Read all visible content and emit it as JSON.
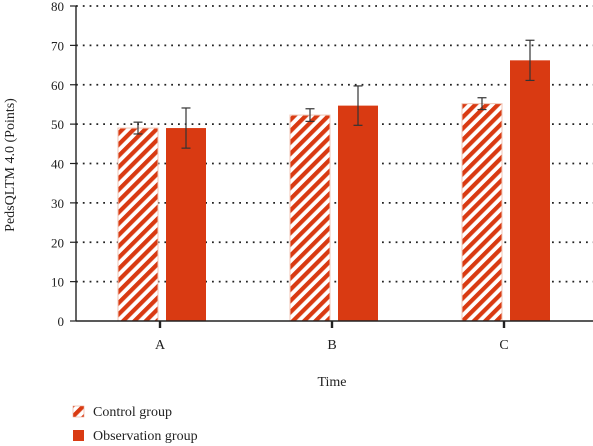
{
  "chart_data": {
    "type": "bar",
    "ylabel": "PedsQLTM 4.0 (Points)",
    "xlabel": "Time",
    "categories": [
      "A",
      "B",
      "C"
    ],
    "ylim": [
      0,
      80
    ],
    "yticks": [
      0,
      10,
      20,
      30,
      40,
      50,
      60,
      70,
      80
    ],
    "grid": true,
    "legend_position": "bottom-left",
    "series": [
      {
        "name": "Control group",
        "values": [
          49,
          52.3,
          55.2
        ],
        "errors": [
          1.5,
          1.6,
          1.5
        ],
        "style": "hatched",
        "color": "#d93a12"
      },
      {
        "name": "Observation group",
        "values": [
          49,
          54.7,
          66.2
        ],
        "errors": [
          5.1,
          5.0,
          5.1
        ],
        "style": "solid",
        "color": "#d93a12"
      }
    ]
  }
}
